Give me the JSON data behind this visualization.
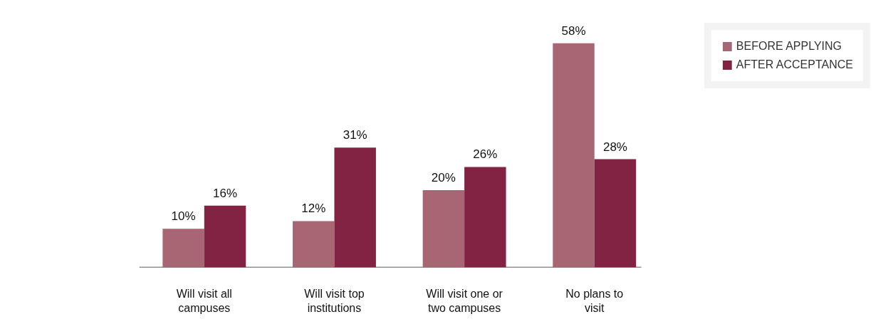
{
  "chart_data": {
    "type": "bar",
    "categories": [
      "Will visit all\ncampuses",
      "Will visit top\ninstitutions",
      "Will visit one or\ntwo campuses",
      "No plans to\nvisit"
    ],
    "series": [
      {
        "name": "BEFORE APPLYING",
        "color": "#a86674",
        "values": [
          10,
          12,
          20,
          58
        ],
        "value_labels": [
          "10%",
          "12%",
          "20%",
          "58%"
        ]
      },
      {
        "name": "AFTER ACCEPTANCE",
        "color": "#822343",
        "values": [
          16,
          31,
          26,
          28
        ],
        "value_labels": [
          "16%",
          "31%",
          "26%",
          "28%"
        ]
      }
    ],
    "legend": "top right"
  }
}
